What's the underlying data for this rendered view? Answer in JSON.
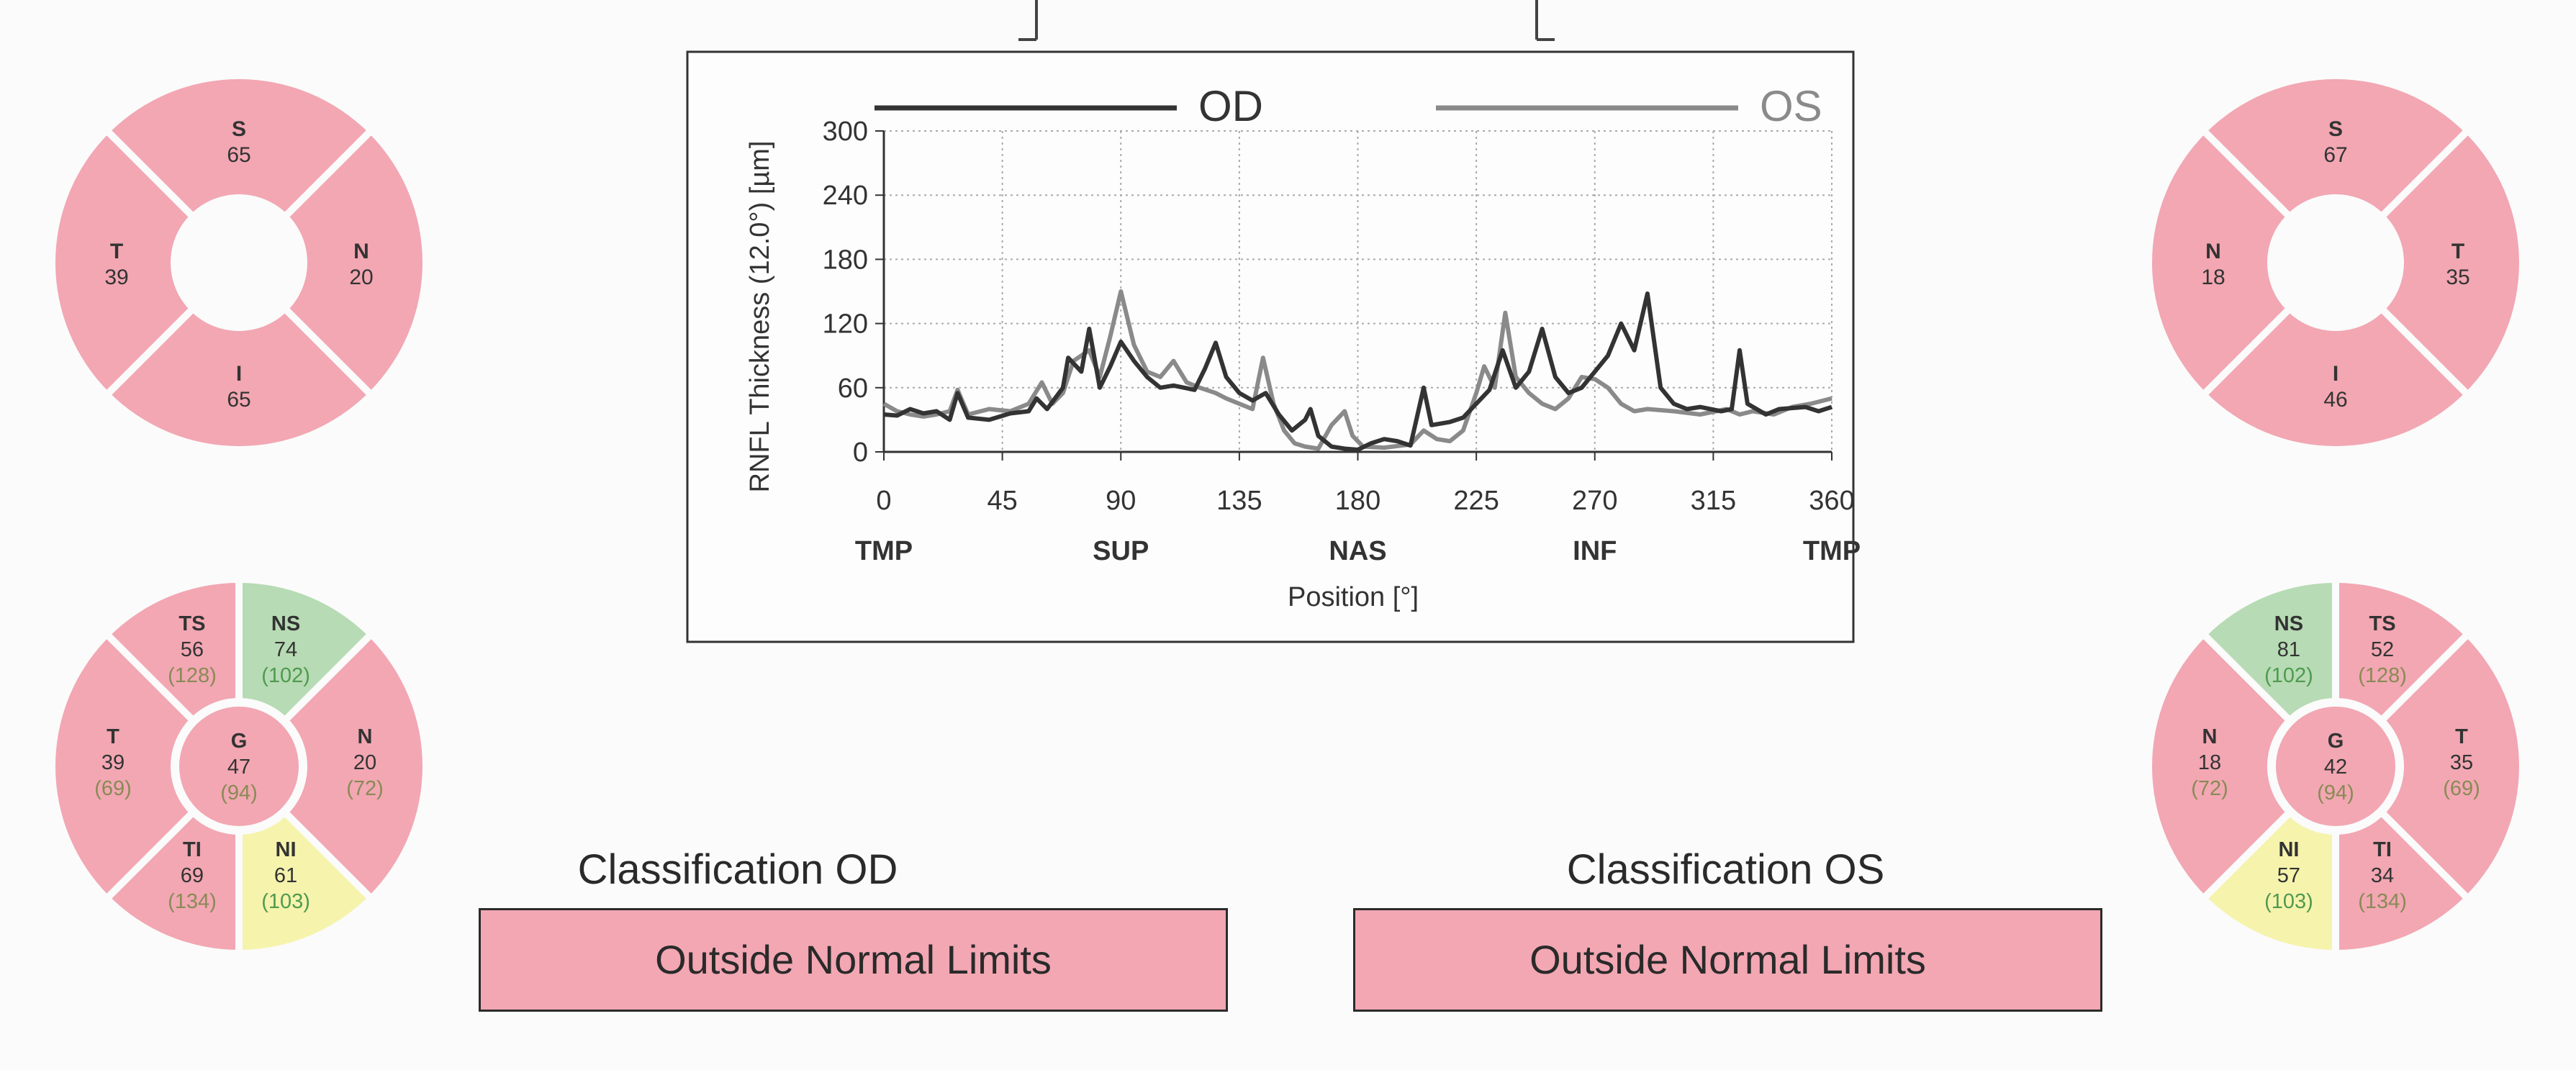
{
  "colors": {
    "outside_normal": "#f2a7b3",
    "borderline": "#f6f3ad",
    "within_normal": "#b7dbb4",
    "od_line": "#333333",
    "os_line": "#8a8a8a",
    "normal_value_text": "#4f9a4f",
    "warn_value_text": "#8a8a55"
  },
  "od_quadrants": [
    {
      "label": "S",
      "value": "65",
      "status": "outside_normal"
    },
    {
      "label": "N",
      "value": "20",
      "status": "outside_normal"
    },
    {
      "label": "I",
      "value": "65",
      "status": "outside_normal"
    },
    {
      "label": "T",
      "value": "39",
      "status": "outside_normal"
    }
  ],
  "od_sectors": {
    "TS": {
      "label": "TS",
      "value": "56",
      "normal": "(128)",
      "status": "outside_normal"
    },
    "NS": {
      "label": "NS",
      "value": "74",
      "normal": "(102)",
      "status": "within_normal"
    },
    "N": {
      "label": "N",
      "value": "20",
      "normal": "(72)",
      "status": "outside_normal"
    },
    "NI": {
      "label": "NI",
      "value": "61",
      "normal": "(103)",
      "status": "borderline"
    },
    "TI": {
      "label": "TI",
      "value": "69",
      "normal": "(134)",
      "status": "outside_normal"
    },
    "T": {
      "label": "T",
      "value": "39",
      "normal": "(69)",
      "status": "outside_normal"
    },
    "G": {
      "label": "G",
      "value": "47",
      "normal": "(94)",
      "status": "outside_normal"
    }
  },
  "os_quadrants": [
    {
      "label": "S",
      "value": "67",
      "status": "outside_normal"
    },
    {
      "label": "T",
      "value": "35",
      "status": "outside_normal"
    },
    {
      "label": "I",
      "value": "46",
      "status": "outside_normal"
    },
    {
      "label": "N",
      "value": "18",
      "status": "outside_normal"
    }
  ],
  "os_sectors": {
    "NS": {
      "label": "NS",
      "value": "81",
      "normal": "(102)",
      "status": "within_normal"
    },
    "TS": {
      "label": "TS",
      "value": "52",
      "normal": "(128)",
      "status": "outside_normal"
    },
    "T": {
      "label": "T",
      "value": "35",
      "normal": "(69)",
      "status": "outside_normal"
    },
    "TI": {
      "label": "TI",
      "value": "34",
      "normal": "(134)",
      "status": "outside_normal"
    },
    "NI": {
      "label": "NI",
      "value": "57",
      "normal": "(103)",
      "status": "borderline"
    },
    "N": {
      "label": "N",
      "value": "18",
      "normal": "(72)",
      "status": "outside_normal"
    },
    "G": {
      "label": "G",
      "value": "42",
      "normal": "(94)",
      "status": "outside_normal"
    }
  },
  "classification": {
    "od_title": "Classification OD",
    "od_result": "Outside Normal Limits",
    "os_title": "Classification OS",
    "os_result": "Outside Normal Limits"
  },
  "chart_data": {
    "type": "line",
    "title": "",
    "xlabel": "Position [°]",
    "ylabel": "RNFL Thickness (12.0°) [µm]",
    "xlim": [
      0,
      360
    ],
    "ylim": [
      0,
      300
    ],
    "x_ticks": [
      0,
      45,
      90,
      135,
      180,
      225,
      270,
      315,
      360
    ],
    "y_ticks": [
      0,
      60,
      120,
      180,
      240,
      300
    ],
    "region_labels": [
      {
        "label": "TMP",
        "x": 0
      },
      {
        "label": "SUP",
        "x": 90
      },
      {
        "label": "NAS",
        "x": 180
      },
      {
        "label": "INF",
        "x": 270
      },
      {
        "label": "TMP",
        "x": 360
      }
    ],
    "grid": true,
    "legend": "top",
    "series": [
      {
        "name": "OD",
        "color": "#333333",
        "points": [
          [
            0,
            35
          ],
          [
            5,
            34
          ],
          [
            10,
            40
          ],
          [
            15,
            36
          ],
          [
            20,
            38
          ],
          [
            25,
            30
          ],
          [
            28,
            55
          ],
          [
            32,
            32
          ],
          [
            40,
            30
          ],
          [
            48,
            36
          ],
          [
            55,
            38
          ],
          [
            58,
            50
          ],
          [
            62,
            40
          ],
          [
            68,
            60
          ],
          [
            70,
            88
          ],
          [
            75,
            75
          ],
          [
            78,
            115
          ],
          [
            82,
            60
          ],
          [
            86,
            80
          ],
          [
            90,
            103
          ],
          [
            95,
            85
          ],
          [
            100,
            70
          ],
          [
            105,
            60
          ],
          [
            110,
            62
          ],
          [
            118,
            58
          ],
          [
            122,
            78
          ],
          [
            126,
            102
          ],
          [
            130,
            70
          ],
          [
            135,
            55
          ],
          [
            140,
            48
          ],
          [
            145,
            55
          ],
          [
            150,
            35
          ],
          [
            155,
            20
          ],
          [
            160,
            30
          ],
          [
            162,
            40
          ],
          [
            165,
            15
          ],
          [
            170,
            5
          ],
          [
            175,
            3
          ],
          [
            180,
            2
          ],
          [
            185,
            8
          ],
          [
            190,
            12
          ],
          [
            195,
            10
          ],
          [
            200,
            6
          ],
          [
            205,
            60
          ],
          [
            208,
            25
          ],
          [
            215,
            28
          ],
          [
            220,
            32
          ],
          [
            225,
            45
          ],
          [
            230,
            58
          ],
          [
            235,
            95
          ],
          [
            240,
            60
          ],
          [
            245,
            75
          ],
          [
            250,
            115
          ],
          [
            255,
            70
          ],
          [
            260,
            55
          ],
          [
            265,
            60
          ],
          [
            270,
            75
          ],
          [
            275,
            90
          ],
          [
            280,
            120
          ],
          [
            285,
            95
          ],
          [
            290,
            148
          ],
          [
            295,
            60
          ],
          [
            300,
            45
          ],
          [
            305,
            40
          ],
          [
            310,
            42
          ],
          [
            318,
            38
          ],
          [
            322,
            40
          ],
          [
            325,
            95
          ],
          [
            328,
            45
          ],
          [
            335,
            35
          ],
          [
            340,
            40
          ],
          [
            350,
            42
          ],
          [
            355,
            38
          ],
          [
            360,
            42
          ]
        ]
      },
      {
        "name": "OS",
        "color": "#8a8a8a",
        "points": [
          [
            0,
            45
          ],
          [
            5,
            38
          ],
          [
            10,
            35
          ],
          [
            15,
            33
          ],
          [
            20,
            35
          ],
          [
            25,
            38
          ],
          [
            28,
            58
          ],
          [
            32,
            35
          ],
          [
            40,
            40
          ],
          [
            48,
            38
          ],
          [
            55,
            45
          ],
          [
            60,
            65
          ],
          [
            64,
            45
          ],
          [
            68,
            55
          ],
          [
            72,
            85
          ],
          [
            78,
            95
          ],
          [
            82,
            70
          ],
          [
            86,
            108
          ],
          [
            90,
            150
          ],
          [
            95,
            100
          ],
          [
            100,
            75
          ],
          [
            105,
            70
          ],
          [
            110,
            85
          ],
          [
            115,
            65
          ],
          [
            120,
            60
          ],
          [
            126,
            55
          ],
          [
            130,
            50
          ],
          [
            135,
            45
          ],
          [
            140,
            40
          ],
          [
            144,
            88
          ],
          [
            148,
            45
          ],
          [
            152,
            20
          ],
          [
            156,
            8
          ],
          [
            160,
            5
          ],
          [
            165,
            3
          ],
          [
            170,
            25
          ],
          [
            175,
            38
          ],
          [
            178,
            15
          ],
          [
            182,
            5
          ],
          [
            190,
            4
          ],
          [
            200,
            7
          ],
          [
            205,
            20
          ],
          [
            210,
            12
          ],
          [
            215,
            10
          ],
          [
            220,
            20
          ],
          [
            225,
            55
          ],
          [
            228,
            80
          ],
          [
            232,
            60
          ],
          [
            236,
            130
          ],
          [
            240,
            70
          ],
          [
            245,
            55
          ],
          [
            250,
            45
          ],
          [
            255,
            40
          ],
          [
            260,
            50
          ],
          [
            265,
            70
          ],
          [
            270,
            68
          ],
          [
            275,
            60
          ],
          [
            280,
            45
          ],
          [
            285,
            38
          ],
          [
            290,
            40
          ],
          [
            300,
            38
          ],
          [
            310,
            35
          ],
          [
            320,
            40
          ],
          [
            325,
            35
          ],
          [
            330,
            38
          ],
          [
            338,
            35
          ],
          [
            345,
            42
          ],
          [
            352,
            45
          ],
          [
            360,
            50
          ]
        ]
      }
    ]
  }
}
